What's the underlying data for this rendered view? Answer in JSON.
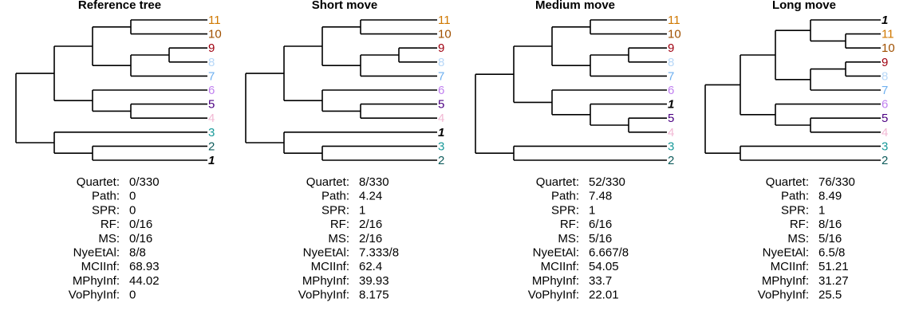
{
  "colors": {
    "1": "#000000",
    "2": "#0f5c5c",
    "3": "#1a9a9a",
    "4": "#f2b8d4",
    "5": "#4b0082",
    "6": "#c080f0",
    "7": "#6fb0f0",
    "8": "#b8d8f8",
    "9": "#a00010",
    "10": "#a05000",
    "11": "#d07800"
  },
  "stat_labels": [
    "Quartet:",
    "Path:",
    "SPR:",
    "RF:",
    "MS:",
    "NyeEtAl:",
    "MCIInf:",
    "MPhyInf:",
    "VoPhyInf:"
  ],
  "panels": [
    {
      "title": "Reference tree",
      "tips": [
        "11",
        "10",
        "9",
        "8",
        "7",
        "6",
        "5",
        "4",
        "3",
        "2",
        "1"
      ],
      "stats": [
        "0/330",
        "0",
        "0",
        "0/16",
        "0/16",
        "8/8",
        "68.93",
        "44.02",
        "0"
      ]
    },
    {
      "title": "Short move",
      "tips": [
        "11",
        "10",
        "9",
        "8",
        "7",
        "6",
        "5",
        "4",
        "1",
        "3",
        "2"
      ],
      "stats": [
        "8/330",
        "4.24",
        "1",
        "2/16",
        "2/16",
        "7.333/8",
        "62.4",
        "39.93",
        "8.175"
      ]
    },
    {
      "title": "Medium move",
      "tips": [
        "11",
        "10",
        "9",
        "8",
        "7",
        "6",
        "1",
        "5",
        "4",
        "3",
        "2"
      ],
      "stats": [
        "52/330",
        "7.48",
        "1",
        "6/16",
        "5/16",
        "6.667/8",
        "54.05",
        "33.7",
        "22.01"
      ]
    },
    {
      "title": "Long move",
      "tips": [
        "1",
        "11",
        "10",
        "9",
        "8",
        "7",
        "6",
        "5",
        "4",
        "3",
        "2"
      ],
      "stats": [
        "76/330",
        "8.49",
        "1",
        "8/16",
        "5/16",
        "6.5/8",
        "51.21",
        "31.27",
        "25.5"
      ]
    }
  ]
}
